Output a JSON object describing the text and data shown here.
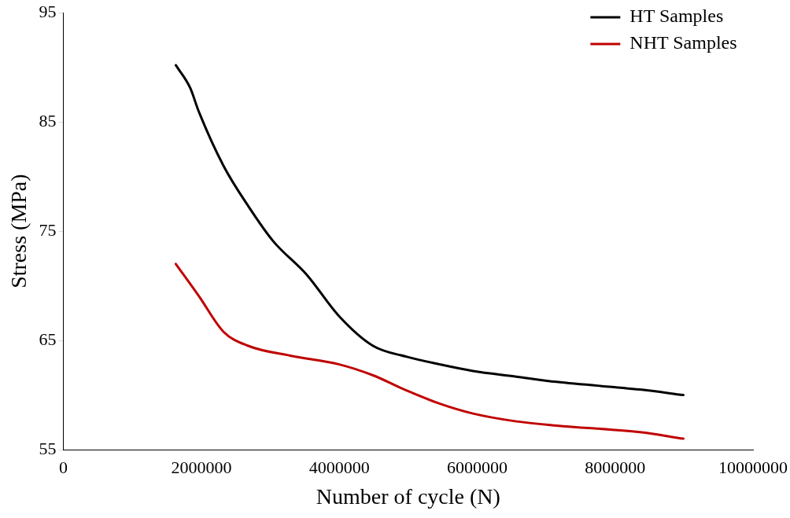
{
  "chart_data": {
    "type": "line",
    "xlabel": "Number of cycle (N)",
    "ylabel": "Stress (MPa)",
    "xlim": [
      0,
      10000000
    ],
    "xticks": [
      0,
      2000000,
      4000000,
      6000000,
      8000000,
      10000000
    ],
    "ylim": [
      55,
      95
    ],
    "yticks": [
      55,
      65,
      75,
      85,
      95
    ],
    "grid": false,
    "legend": "top right",
    "marker": "none",
    "line_style": "solid",
    "series": [
      {
        "name": "HT Samples",
        "color": "#000000",
        "x": [
          1630000,
          1840000,
          1960000,
          2320000,
          2680000,
          3040000,
          3530000,
          4000000,
          4490000,
          4980000,
          5460000,
          5940000,
          6550000,
          7150000,
          8360000,
          8990000
        ],
        "values": [
          90.2,
          88.1,
          86.0,
          81.0,
          77.3,
          74.1,
          71.0,
          67.2,
          64.5,
          63.5,
          62.8,
          62.2,
          61.7,
          61.2,
          60.5,
          60.0
        ]
      },
      {
        "name": "NHT Samples",
        "color": "#c00000",
        "x": [
          1630000,
          1960000,
          2320000,
          2680000,
          3290000,
          4000000,
          4490000,
          4980000,
          5460000,
          5940000,
          6550000,
          7150000,
          8360000,
          8990000
        ],
        "values": [
          72.0,
          69.1,
          65.8,
          64.5,
          63.6,
          62.8,
          61.8,
          60.4,
          59.2,
          58.3,
          57.6,
          57.2,
          56.6,
          56.0
        ]
      }
    ]
  }
}
